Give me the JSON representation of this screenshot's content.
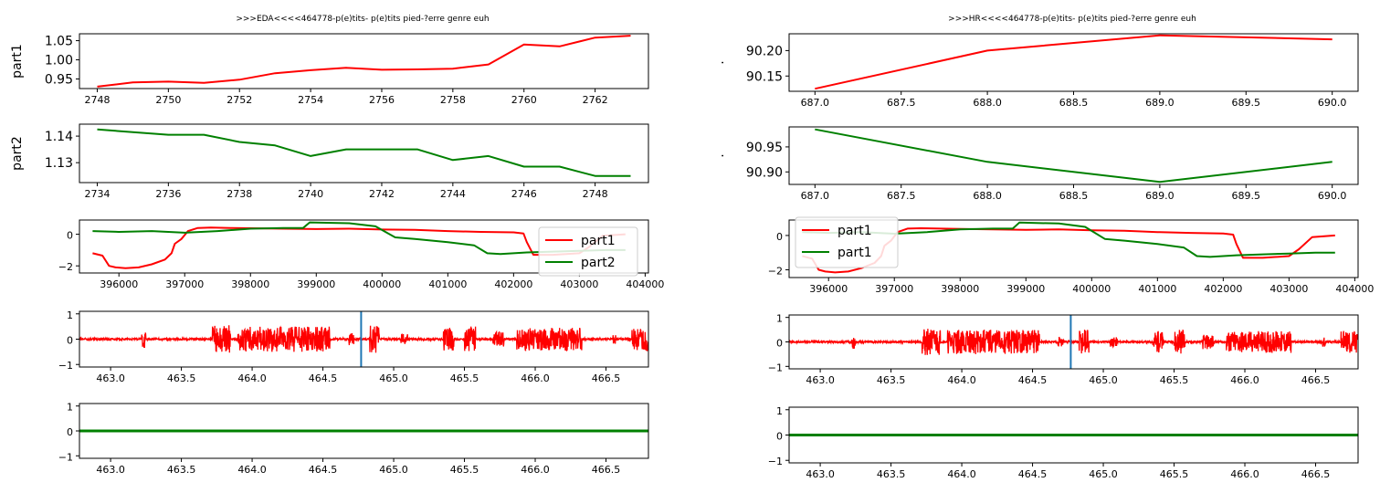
{
  "figure": {
    "left_title": ">>>EDA<<<<464778-p(e)tits- p(e)tits pied-?erre genre euh",
    "right_title": ">>>HR<<<<464778-p(e)tits- p(e)tits pied-?erre genre euh"
  },
  "chart_data": [
    {
      "id": "eda_part1",
      "type": "line",
      "ylabel": "part1",
      "series": [
        {
          "color": "#ff0000",
          "x": [
            2748,
            2749,
            2750,
            2751,
            2752,
            2753,
            2754,
            2755,
            2756,
            2757,
            2758,
            2759,
            2760,
            2761,
            2762,
            2763
          ],
          "y": [
            0.93,
            0.941,
            0.943,
            0.94,
            0.948,
            0.965,
            0.973,
            0.979,
            0.974,
            0.975,
            0.977,
            0.988,
            1.04,
            1.035,
            1.058,
            1.063
          ]
        }
      ],
      "xlim": [
        2747.5,
        2763.5
      ],
      "ylim": [
        0.925,
        1.068
      ],
      "xticks": [
        2748,
        2750,
        2752,
        2754,
        2756,
        2758,
        2760,
        2762
      ],
      "xtick_labels": [
        "2748",
        "2750",
        "2752",
        "2754",
        "2756",
        "2758",
        "2760",
        "2762"
      ],
      "yticks": [
        0.95,
        1.0,
        1.05
      ],
      "ytick_labels": [
        "0.95",
        "1.00",
        "1.05"
      ]
    },
    {
      "id": "eda_part2",
      "type": "line",
      "ylabel": "part2",
      "series": [
        {
          "color": "#008000",
          "x": [
            2734,
            2735,
            2736,
            2737,
            2738,
            2739,
            2740,
            2741,
            2742,
            2743,
            2744,
            2745,
            2746,
            2747,
            2748,
            2749
          ],
          "y": [
            1.1425,
            1.1415,
            1.1405,
            1.1405,
            1.1378,
            1.1365,
            1.1325,
            1.135,
            1.135,
            1.135,
            1.131,
            1.1325,
            1.1285,
            1.1285,
            1.125,
            1.125
          ]
        }
      ],
      "xlim": [
        2733.5,
        2749.5
      ],
      "ylim": [
        1.1225,
        1.1445
      ],
      "xticks": [
        2734,
        2736,
        2738,
        2740,
        2742,
        2744,
        2746,
        2748
      ],
      "xtick_labels": [
        "2734",
        "2736",
        "2738",
        "2740",
        "2742",
        "2744",
        "2746",
        "2748"
      ],
      "yticks": [
        1.13,
        1.14
      ],
      "ytick_labels": [
        "1.13",
        "1.14"
      ]
    },
    {
      "id": "eda_overlay",
      "type": "line",
      "legend": [
        "part1",
        "part2"
      ],
      "legend_position": "right",
      "series": [
        {
          "name": "part1",
          "color": "#ff0000",
          "x": [
            395600,
            395750,
            395850,
            395950,
            396100,
            396300,
            396500,
            396700,
            396800,
            396850,
            396950,
            397050,
            397200,
            397400,
            397700,
            398000,
            398500,
            399000,
            399500,
            400000,
            400500,
            401000,
            401500,
            402000,
            402150,
            402200,
            402300,
            402600,
            403000,
            403150,
            403350,
            403700
          ],
          "y": [
            -1.2,
            -1.35,
            -2.0,
            -2.1,
            -2.15,
            -2.1,
            -1.9,
            -1.6,
            -1.2,
            -0.6,
            -0.3,
            0.2,
            0.4,
            0.42,
            0.4,
            0.38,
            0.35,
            0.33,
            0.35,
            0.3,
            0.28,
            0.2,
            0.15,
            0.12,
            0.05,
            -0.5,
            -1.3,
            -1.3,
            -1.2,
            -0.8,
            -0.1,
            0.0
          ]
        },
        {
          "name": "part2",
          "color": "#008000",
          "x": [
            395600,
            396000,
            396500,
            397000,
            397500,
            398000,
            398500,
            398800,
            398900,
            399500,
            399900,
            400200,
            400500,
            401000,
            401400,
            401600,
            401800,
            402200,
            402600,
            403000,
            403400,
            403700
          ],
          "y": [
            0.2,
            0.15,
            0.2,
            0.1,
            0.2,
            0.35,
            0.4,
            0.4,
            0.75,
            0.7,
            0.5,
            -0.2,
            -0.3,
            -0.5,
            -0.7,
            -1.2,
            -1.25,
            -1.15,
            -1.1,
            -1.05,
            -1.0,
            -1.0
          ]
        }
      ],
      "xlim": [
        395400,
        404050
      ],
      "ylim": [
        -2.45,
        0.9
      ],
      "xticks": [
        396000,
        397000,
        398000,
        399000,
        400000,
        401000,
        402000,
        403000,
        404000
      ],
      "xtick_labels": [
        "396000",
        "397000",
        "398000",
        "399000",
        "400000",
        "401000",
        "402000",
        "403000",
        "404000"
      ],
      "yticks": [
        0,
        -2
      ],
      "ytick_labels": [
        "0",
        "−2"
      ]
    },
    {
      "id": "eda_audio",
      "type": "line",
      "note": "audio waveform",
      "color": "#ff0000",
      "vline": 464.77,
      "vline_color": "#1f77b4",
      "xlim": [
        462.78,
        466.8
      ],
      "ylim": [
        -1.1,
        1.1
      ],
      "xticks": [
        463.0,
        463.5,
        464.0,
        464.5,
        465.0,
        465.5,
        466.0,
        466.5
      ],
      "xtick_labels": [
        "463.0",
        "463.5",
        "464.0",
        "464.5",
        "465.0",
        "465.5",
        "466.0",
        "466.5"
      ],
      "yticks": [
        1,
        0,
        -1
      ],
      "ytick_labels": [
        "1",
        "0",
        "−1"
      ]
    },
    {
      "id": "eda_flat",
      "type": "line",
      "color": "#008000",
      "xlim": [
        462.78,
        466.8
      ],
      "ylim": [
        -1.1,
        1.1
      ],
      "xticks": [
        463.0,
        463.5,
        464.0,
        464.5,
        465.0,
        465.5,
        466.0,
        466.5
      ],
      "xtick_labels": [
        "463.0",
        "463.5",
        "464.0",
        "464.5",
        "465.0",
        "465.5",
        "466.0",
        "466.5"
      ],
      "yticks": [
        1,
        0,
        -1
      ],
      "ytick_labels": [
        "1",
        "0",
        "−1"
      ]
    },
    {
      "id": "hr_part1",
      "type": "line",
      "ylabel": ".",
      "series": [
        {
          "color": "#ff0000",
          "x": [
            687,
            688,
            689,
            690
          ],
          "y": [
            90.125,
            90.2,
            90.23,
            90.222
          ]
        }
      ],
      "xlim": [
        686.85,
        690.15
      ],
      "ylim": [
        90.12,
        90.233
      ],
      "xticks": [
        687.0,
        687.5,
        688.0,
        688.5,
        689.0,
        689.5,
        690.0
      ],
      "xtick_labels": [
        "687.0",
        "687.5",
        "688.0",
        "688.5",
        "689.0",
        "689.5",
        "690.0"
      ],
      "yticks": [
        90.15,
        90.2
      ],
      "ytick_labels": [
        "90.15",
        "90.20"
      ]
    },
    {
      "id": "hr_part2",
      "type": "line",
      "ylabel": ".",
      "series": [
        {
          "color": "#008000",
          "x": [
            687,
            688,
            689,
            690
          ],
          "y": [
            90.985,
            90.92,
            90.88,
            90.92
          ]
        }
      ],
      "xlim": [
        686.85,
        690.15
      ],
      "ylim": [
        90.875,
        90.99
      ],
      "xticks": [
        687.0,
        687.5,
        688.0,
        688.5,
        689.0,
        689.5,
        690.0
      ],
      "xtick_labels": [
        "687.0",
        "687.5",
        "688.0",
        "688.5",
        "689.0",
        "689.5",
        "690.0"
      ],
      "yticks": [
        90.9,
        90.95
      ],
      "ytick_labels": [
        "90.90",
        "90.95"
      ]
    },
    {
      "id": "hr_overlay",
      "type": "line",
      "legend": [
        "part1",
        "part1"
      ],
      "legend_position": "upper left",
      "series": [
        {
          "name": "part1",
          "color": "#ff0000",
          "x": [
            395600,
            395750,
            395850,
            395950,
            396100,
            396300,
            396500,
            396700,
            396800,
            396850,
            396950,
            397050,
            397200,
            397400,
            397700,
            398000,
            398500,
            399000,
            399500,
            400000,
            400500,
            401000,
            401500,
            402000,
            402150,
            402200,
            402300,
            402600,
            403000,
            403150,
            403350,
            403700
          ],
          "y": [
            -1.2,
            -1.35,
            -2.0,
            -2.1,
            -2.15,
            -2.1,
            -1.9,
            -1.6,
            -1.2,
            -0.6,
            -0.3,
            0.2,
            0.4,
            0.42,
            0.4,
            0.38,
            0.35,
            0.33,
            0.35,
            0.3,
            0.28,
            0.2,
            0.15,
            0.12,
            0.05,
            -0.5,
            -1.3,
            -1.3,
            -1.2,
            -0.8,
            -0.1,
            0.0
          ]
        },
        {
          "name": "part1",
          "color": "#008000",
          "x": [
            395600,
            396000,
            396500,
            397000,
            397500,
            398000,
            398500,
            398800,
            398900,
            399500,
            399900,
            400200,
            400500,
            401000,
            401400,
            401600,
            401800,
            402200,
            402600,
            403000,
            403400,
            403700
          ],
          "y": [
            0.2,
            0.15,
            0.2,
            0.1,
            0.2,
            0.35,
            0.4,
            0.4,
            0.75,
            0.7,
            0.5,
            -0.2,
            -0.3,
            -0.5,
            -0.7,
            -1.2,
            -1.25,
            -1.15,
            -1.1,
            -1.05,
            -1.0,
            -1.0
          ]
        }
      ],
      "xlim": [
        395400,
        404050
      ],
      "ylim": [
        -2.45,
        0.9
      ],
      "xticks": [
        396000,
        397000,
        398000,
        399000,
        400000,
        401000,
        402000,
        403000,
        404000
      ],
      "xtick_labels": [
        "396000",
        "397000",
        "398000",
        "399000",
        "400000",
        "401000",
        "402000",
        "403000",
        "404000"
      ],
      "yticks": [
        0,
        -2
      ],
      "ytick_labels": [
        "0",
        "−2"
      ]
    },
    {
      "id": "hr_audio",
      "type": "line",
      "note": "audio waveform",
      "color": "#ff0000",
      "vline": 464.77,
      "vline_color": "#1f77b4",
      "xlim": [
        462.78,
        466.8
      ],
      "ylim": [
        -1.1,
        1.1
      ],
      "xticks": [
        463.0,
        463.5,
        464.0,
        464.5,
        465.0,
        465.5,
        466.0,
        466.5
      ],
      "xtick_labels": [
        "463.0",
        "463.5",
        "464.0",
        "464.5",
        "465.0",
        "465.5",
        "466.0",
        "466.5"
      ],
      "yticks": [
        1,
        0,
        -1
      ],
      "ytick_labels": [
        "1",
        "0",
        "−1"
      ]
    },
    {
      "id": "hr_flat",
      "type": "line",
      "color": "#008000",
      "xlim": [
        462.78,
        466.8
      ],
      "ylim": [
        -1.1,
        1.1
      ],
      "xticks": [
        463.0,
        463.5,
        464.0,
        464.5,
        465.0,
        465.5,
        466.0,
        466.5
      ],
      "xtick_labels": [
        "463.0",
        "463.5",
        "464.0",
        "464.5",
        "465.0",
        "465.5",
        "466.0",
        "466.5"
      ],
      "yticks": [
        1,
        0,
        -1
      ],
      "ytick_labels": [
        "1",
        "0",
        "−1"
      ]
    }
  ]
}
